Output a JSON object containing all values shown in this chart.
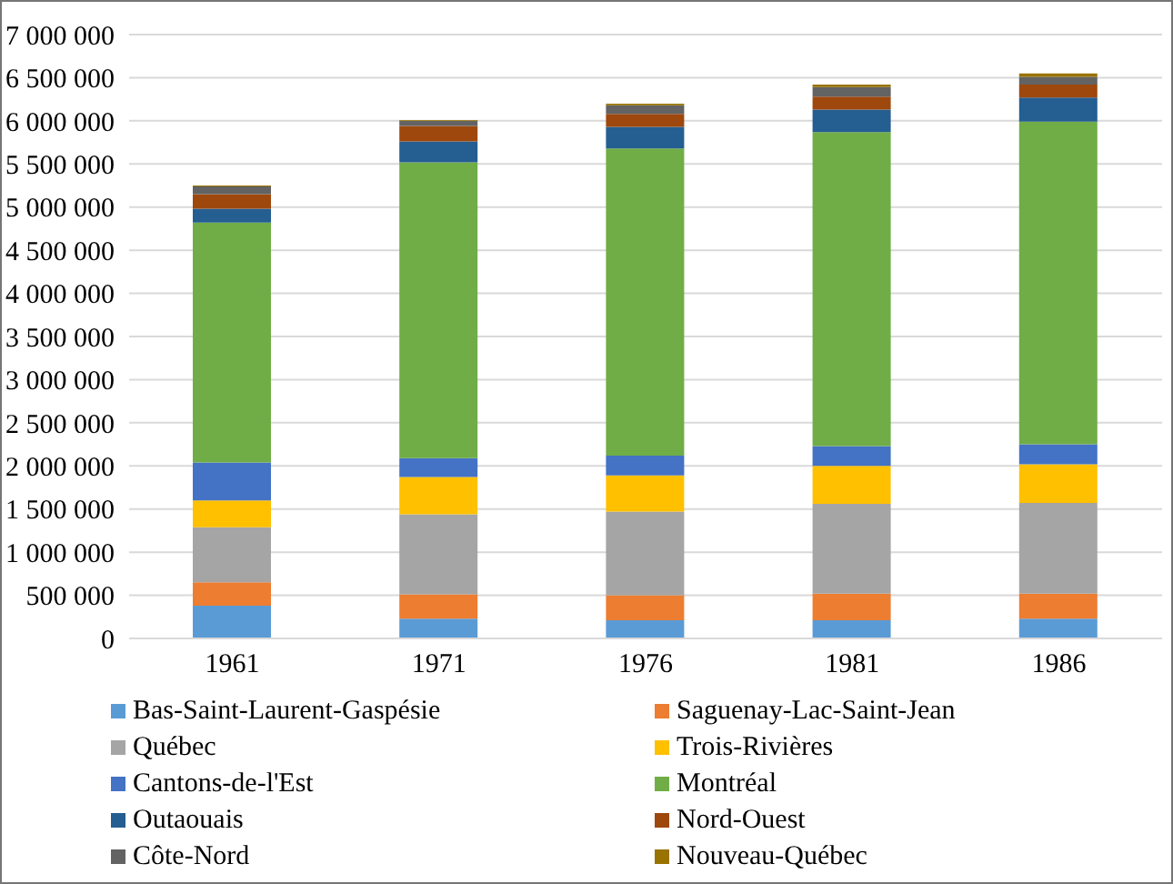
{
  "chart_data": {
    "type": "bar",
    "stacked": true,
    "categories": [
      "1961",
      "1971",
      "1976",
      "1981",
      "1986"
    ],
    "series": [
      {
        "name": "Bas-Saint-Laurent-Gaspésie",
        "color": "#5b9bd5",
        "values": [
          380000,
          230000,
          210000,
          210000,
          230000
        ]
      },
      {
        "name": "Saguenay-Lac-Saint-Jean",
        "color": "#ed7d31",
        "values": [
          270000,
          280000,
          290000,
          310000,
          290000
        ]
      },
      {
        "name": "Québec",
        "color": "#a5a5a5",
        "values": [
          640000,
          930000,
          970000,
          1040000,
          1050000
        ]
      },
      {
        "name": "Trois-Rivières",
        "color": "#ffc000",
        "values": [
          310000,
          430000,
          420000,
          440000,
          450000
        ]
      },
      {
        "name": "Cantons-de-l'Est",
        "color": "#4472c4",
        "values": [
          440000,
          220000,
          230000,
          230000,
          230000
        ]
      },
      {
        "name": "Montréal",
        "color": "#70ad47",
        "values": [
          2780000,
          3430000,
          3560000,
          3640000,
          3740000
        ]
      },
      {
        "name": "Outaouais",
        "color": "#255e91",
        "values": [
          160000,
          240000,
          250000,
          260000,
          280000
        ]
      },
      {
        "name": "Nord-Ouest",
        "color": "#9e480e",
        "values": [
          170000,
          180000,
          150000,
          150000,
          150000
        ]
      },
      {
        "name": "Côte-Nord",
        "color": "#636363",
        "values": [
          90000,
          60000,
          100000,
          110000,
          90000
        ]
      },
      {
        "name": "Nouveau-Québec",
        "color": "#997300",
        "values": [
          10000,
          10000,
          20000,
          30000,
          40000
        ]
      }
    ],
    "ylim": [
      0,
      7000000
    ],
    "yticks": [
      {
        "value": 0,
        "label": "0"
      },
      {
        "value": 500000,
        "label": "500 000"
      },
      {
        "value": 1000000,
        "label": "1 000 000"
      },
      {
        "value": 1500000,
        "label": "1 500 000"
      },
      {
        "value": 2000000,
        "label": "2 000 000"
      },
      {
        "value": 2500000,
        "label": "2 500 000"
      },
      {
        "value": 3000000,
        "label": "3 000 000"
      },
      {
        "value": 3500000,
        "label": "3 500 000"
      },
      {
        "value": 4000000,
        "label": "4 000 000"
      },
      {
        "value": 4500000,
        "label": "4 500 000"
      },
      {
        "value": 5000000,
        "label": "5 000 000"
      },
      {
        "value": 5500000,
        "label": "5 500 000"
      },
      {
        "value": 6000000,
        "label": "6 000 000"
      },
      {
        "value": 6500000,
        "label": "6 500 000"
      },
      {
        "value": 7000000,
        "label": "7 000 000"
      }
    ],
    "grid": "y",
    "legend": "bottom"
  }
}
